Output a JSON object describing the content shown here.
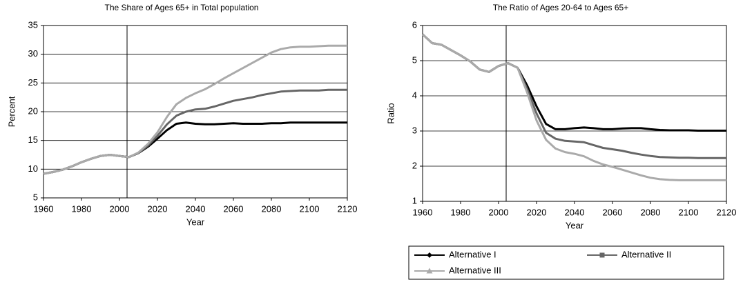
{
  "chart_data": [
    {
      "type": "line",
      "title": "The Share of Ages 65+ in Total population",
      "x_label": "Year",
      "y_label": "Percent",
      "x": [
        1960,
        1965,
        1970,
        1975,
        1980,
        1985,
        1990,
        1995,
        2000,
        2005,
        2010,
        2015,
        2020,
        2025,
        2030,
        2035,
        2040,
        2045,
        2050,
        2055,
        2060,
        2065,
        2070,
        2075,
        2080,
        2085,
        2090,
        2095,
        2100,
        2105,
        2110,
        2115,
        2120
      ],
      "xlim": [
        1960,
        2120
      ],
      "xticks": [
        1960,
        1980,
        2000,
        2020,
        2040,
        2060,
        2080,
        2100,
        2120
      ],
      "ylim": [
        5,
        35
      ],
      "yticks": [
        5,
        10,
        15,
        20,
        25,
        30,
        35
      ],
      "grid": true,
      "vline_x": 2004,
      "series": [
        {
          "color": "#000000",
          "values": [
            9.2,
            9.5,
            9.9,
            10.5,
            11.2,
            11.8,
            12.3,
            12.5,
            12.3,
            12.1,
            12.8,
            13.9,
            15.3,
            16.8,
            17.9,
            18.1,
            17.9,
            17.8,
            17.8,
            17.9,
            18.0,
            17.9,
            17.9,
            17.9,
            18.0,
            18.0,
            18.1,
            18.1,
            18.1,
            18.1,
            18.1,
            18.1,
            18.1
          ]
        },
        {
          "color": "#666666",
          "values": [
            9.2,
            9.5,
            9.9,
            10.5,
            11.2,
            11.8,
            12.3,
            12.5,
            12.3,
            12.1,
            12.8,
            14.1,
            15.8,
            17.8,
            19.3,
            20.0,
            20.4,
            20.5,
            20.9,
            21.4,
            21.9,
            22.2,
            22.5,
            22.9,
            23.2,
            23.5,
            23.6,
            23.7,
            23.7,
            23.7,
            23.8,
            23.8,
            23.8
          ]
        },
        {
          "color": "#aaaaaa",
          "values": [
            9.2,
            9.5,
            9.9,
            10.5,
            11.2,
            11.8,
            12.3,
            12.5,
            12.3,
            12.1,
            12.9,
            14.4,
            16.4,
            19.1,
            21.3,
            22.4,
            23.2,
            23.9,
            24.8,
            25.8,
            26.7,
            27.6,
            28.5,
            29.4,
            30.3,
            30.9,
            31.2,
            31.3,
            31.3,
            31.4,
            31.5,
            31.5,
            31.5
          ]
        }
      ]
    },
    {
      "type": "line",
      "title": "The Ratio of Ages 20-64 to Ages 65+",
      "x_label": "Year",
      "y_label": "Ratio",
      "x": [
        1960,
        1965,
        1970,
        1975,
        1980,
        1985,
        1990,
        1995,
        2000,
        2005,
        2010,
        2015,
        2020,
        2025,
        2030,
        2035,
        2040,
        2045,
        2050,
        2055,
        2060,
        2065,
        2070,
        2075,
        2080,
        2085,
        2090,
        2095,
        2100,
        2105,
        2110,
        2115,
        2120
      ],
      "xlim": [
        1960,
        2120
      ],
      "xticks": [
        1960,
        1980,
        2000,
        2020,
        2040,
        2060,
        2080,
        2100,
        2120
      ],
      "ylim": [
        1,
        6
      ],
      "yticks": [
        1,
        2,
        3,
        4,
        5,
        6
      ],
      "grid": true,
      "vline_x": 2004,
      "series": [
        {
          "name": "Alternative I",
          "color": "#000000",
          "values": [
            5.75,
            5.5,
            5.45,
            5.3,
            5.15,
            4.98,
            4.75,
            4.68,
            4.85,
            4.93,
            4.8,
            4.3,
            3.7,
            3.2,
            3.05,
            3.05,
            3.08,
            3.1,
            3.08,
            3.05,
            3.05,
            3.07,
            3.08,
            3.08,
            3.05,
            3.03,
            3.02,
            3.02,
            3.02,
            3.01,
            3.01,
            3.01,
            3.01
          ]
        },
        {
          "name": "Alternative II",
          "color": "#666666",
          "values": [
            5.75,
            5.5,
            5.45,
            5.3,
            5.15,
            4.98,
            4.75,
            4.68,
            4.85,
            4.93,
            4.8,
            4.2,
            3.5,
            2.95,
            2.78,
            2.72,
            2.7,
            2.68,
            2.6,
            2.52,
            2.48,
            2.44,
            2.38,
            2.33,
            2.29,
            2.26,
            2.25,
            2.24,
            2.24,
            2.23,
            2.23,
            2.23,
            2.23
          ]
        },
        {
          "name": "Alternative III",
          "color": "#aaaaaa",
          "values": [
            5.75,
            5.5,
            5.45,
            5.3,
            5.15,
            4.98,
            4.75,
            4.68,
            4.85,
            4.93,
            4.8,
            4.1,
            3.3,
            2.75,
            2.5,
            2.4,
            2.35,
            2.28,
            2.15,
            2.05,
            1.98,
            1.9,
            1.82,
            1.74,
            1.67,
            1.63,
            1.61,
            1.6,
            1.6,
            1.6,
            1.6,
            1.6,
            1.6
          ]
        }
      ]
    }
  ]
}
